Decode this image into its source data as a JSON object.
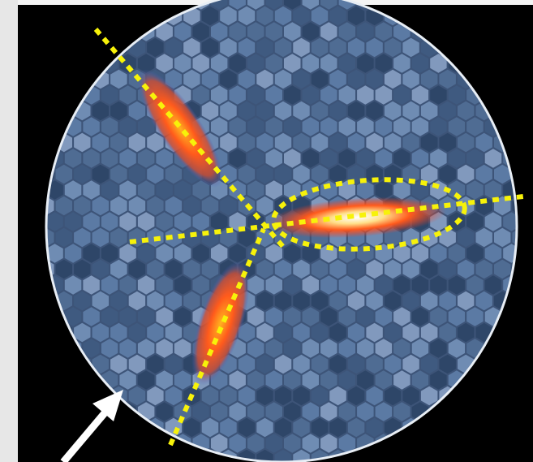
{
  "image": {
    "background_color": "#000000",
    "left_strip_color": "#e7e7e7",
    "camera_face_color": "#3d5478",
    "pixel_colors": [
      "#4f6c93",
      "#5b7aa4",
      "#3f5a80",
      "#6f8cb3",
      "#2e4668",
      "#8199bd"
    ],
    "rim_color": "#e8eef5",
    "ellipse_glow_colors": {
      "core": "#ff9a1a",
      "mid": "#ff4a1e",
      "edge": "#3b64c8"
    },
    "guide_line_color": "#f7f20a",
    "arrow_color": "#ffffff"
  }
}
